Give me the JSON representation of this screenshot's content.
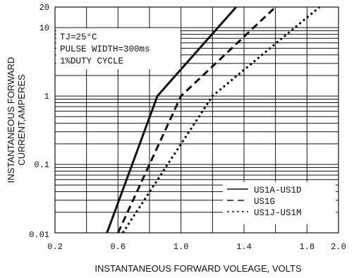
{
  "chart_data": {
    "type": "line",
    "x_axis": {
      "label": "INSTANTANEOUS FORWARD VOLEAGE, VOLTS",
      "range": [
        0.2,
        2.0
      ],
      "ticks": [
        {
          "value": 0.2,
          "label": "0.2"
        },
        {
          "value": 0.6,
          "label": "0.6"
        },
        {
          "value": 1.0,
          "label": "1.0"
        },
        {
          "value": 1.4,
          "label": "1.4"
        },
        {
          "value": 1.8,
          "label": "1.8"
        },
        {
          "value": 2.0,
          "label": "2.0"
        }
      ],
      "grid_step": 0.2
    },
    "y_axis": {
      "label_line1": "INSTANTANEOUS FORWARD",
      "label_line2": "CURRENT,AMPERES",
      "scale": "log",
      "range": [
        0.01,
        20
      ],
      "ticks": [
        {
          "value": 20,
          "label": "20"
        },
        {
          "value": 10,
          "label": "10"
        },
        {
          "value": 1,
          "label": "1"
        },
        {
          "value": 0.1,
          "label": "0.1"
        },
        {
          "value": 0.01,
          "label": "0.01"
        }
      ]
    },
    "conditions": [
      "TJ=25°C",
      "PULSE WIDTH=300ms",
      "1%DUTY CYCLE"
    ],
    "series": [
      {
        "name": "US1A-US1D",
        "style": "solid",
        "color": "#111111",
        "points": [
          [
            0.53,
            0.01
          ],
          [
            0.85,
            1.0
          ],
          [
            1.35,
            20
          ]
        ]
      },
      {
        "name": "US1G",
        "style": "dashed",
        "color": "#111111",
        "points": [
          [
            0.6,
            0.01
          ],
          [
            1.0,
            1.0
          ],
          [
            1.6,
            20
          ]
        ]
      },
      {
        "name": "US1J-US1M",
        "style": "dotted",
        "color": "#111111",
        "points": [
          [
            0.63,
            0.01
          ],
          [
            1.2,
            1.0
          ],
          [
            1.88,
            20
          ]
        ]
      }
    ],
    "legend_position": "bottom-right",
    "grid": true
  }
}
